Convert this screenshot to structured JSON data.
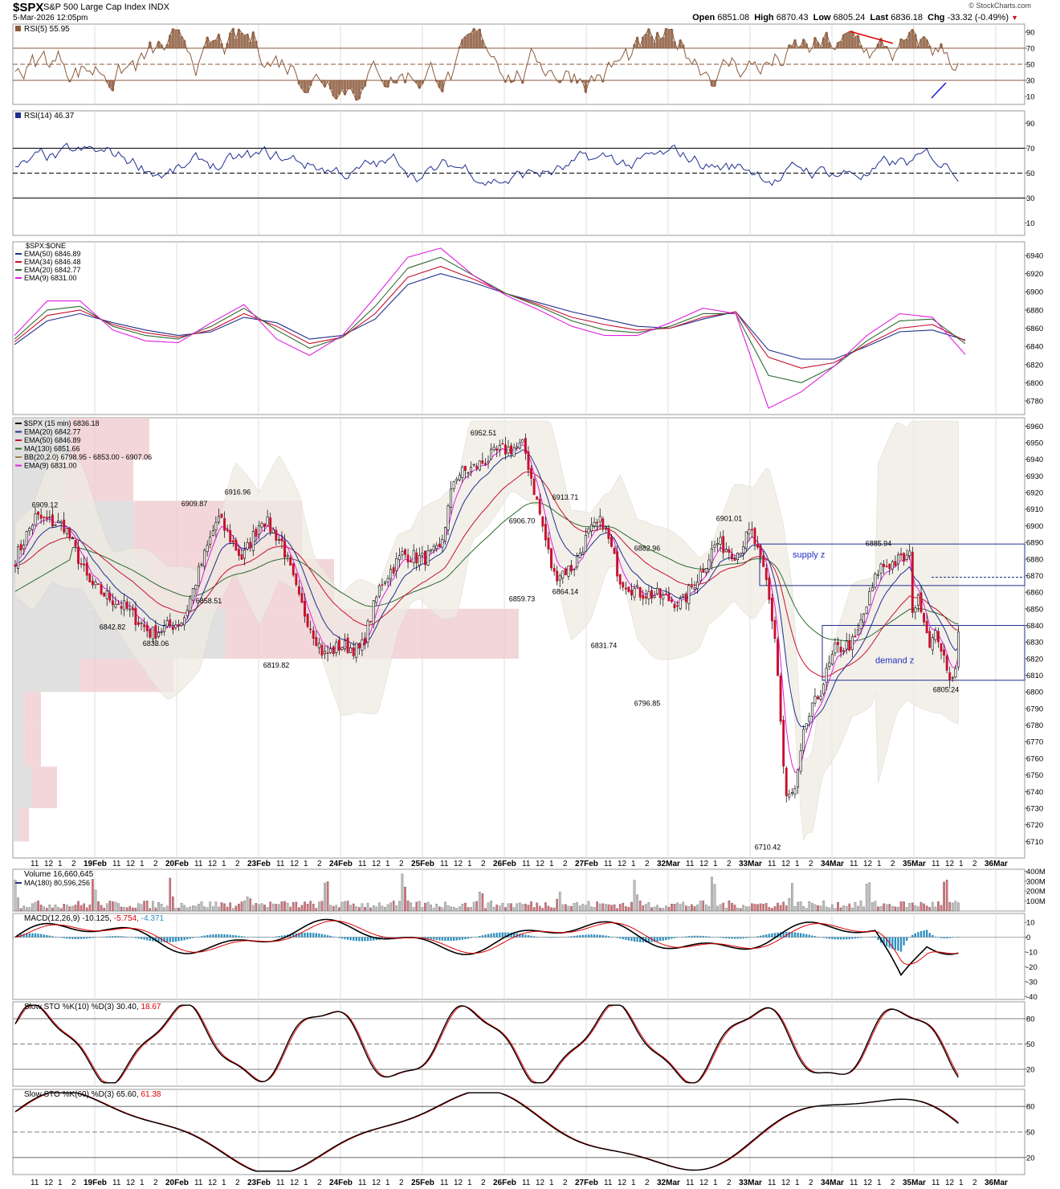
{
  "header": {
    "symbol": "$SPX",
    "name": "S&P 500 Large Cap Index",
    "exchange": "INDX",
    "datetime": "5-Mar-2026 12:05pm",
    "logo": "© StockCharts.com",
    "open_label": "Open",
    "open": "6851.08",
    "high_label": "High",
    "high": "6870.43",
    "low_label": "Low",
    "low": "6805.24",
    "last_label": "Last",
    "last": "6836.18",
    "chg_label": "Chg",
    "chg": "-33.32 (-0.49%)"
  },
  "colors": {
    "up": "#ffffff",
    "down": "#c8102e",
    "candle_edge": "#000000",
    "rsi5": "#8b5a3c",
    "rsi14": "#1f2f8f",
    "ema50": "#1f2f8f",
    "ema34": "#c8102e",
    "ema20": "#2e6b2e",
    "ema9": "#e020e0",
    "sma130": "#2e6b2e",
    "bb_fill": "#efebe3",
    "macd_hist": "#2b8fbf",
    "vol_up": "#bfbfbf",
    "vol_down": "#d9707a"
  },
  "chart_data": [
    {
      "type": "line",
      "panel": "rsi5",
      "legend": [
        "RSI(5) 55.95"
      ],
      "ylim": [
        0,
        100
      ],
      "yticks": [
        "90",
        "70",
        "50",
        "30",
        "10"
      ],
      "levels": [
        70,
        50,
        30
      ],
      "annotations": [
        {
          "kind": "trendline",
          "color": "#e00000",
          "from": [
            "34Mar 11",
            91
          ],
          "to": [
            "34Mar 2",
            76
          ]
        },
        {
          "kind": "trendline",
          "color": "#2020d0",
          "from": [
            "35Mar 11",
            8
          ],
          "to": [
            "35Mar 12",
            27
          ]
        }
      ]
    },
    {
      "type": "line",
      "panel": "rsi14",
      "legend": [
        "RSI(14) 46.37"
      ],
      "ylim": [
        0,
        100
      ],
      "yticks": [
        "90",
        "70",
        "50",
        "30",
        "10"
      ],
      "levels": [
        70,
        50,
        30
      ]
    },
    {
      "type": "line",
      "panel": "ema_ratio",
      "legend": [
        "$SPX:$ONE",
        "EMA(50) 6846.89",
        "EMA(34) 6846.48",
        "EMA(20) 6842.77",
        "EMA(9) 6831.00"
      ],
      "ylim": [
        6765,
        6955
      ],
      "yticks": [
        "6940",
        "6920",
        "6900",
        "6880",
        "6860",
        "6840",
        "6820",
        "6800",
        "6780"
      ],
      "series": [
        {
          "name": "EMA(50) 6846.89",
          "values": [
            6842,
            6868,
            6876,
            6866,
            6858,
            6852,
            6856,
            6872,
            6866,
            6848,
            6852,
            6870,
            6908,
            6920,
            6910,
            6898,
            6888,
            6878,
            6870,
            6862,
            6860,
            6870,
            6878,
            6836,
            6826,
            6826,
            6840,
            6856,
            6858,
            6847
          ]
        },
        {
          "name": "EMA(34) 6846.48",
          "values": [
            6845,
            6874,
            6880,
            6864,
            6855,
            6850,
            6858,
            6876,
            6862,
            6843,
            6850,
            6876,
            6916,
            6928,
            6914,
            6898,
            6886,
            6872,
            6864,
            6858,
            6860,
            6872,
            6878,
            6828,
            6816,
            6822,
            6842,
            6860,
            6864,
            6846
          ]
        },
        {
          "name": "EMA(20) 6842.77",
          "values": [
            6848,
            6880,
            6884,
            6862,
            6852,
            6848,
            6862,
            6882,
            6858,
            6838,
            6850,
            6884,
            6926,
            6938,
            6918,
            6898,
            6884,
            6868,
            6858,
            6855,
            6862,
            6876,
            6876,
            6808,
            6800,
            6818,
            6846,
            6868,
            6870,
            6843
          ]
        },
        {
          "name": "EMA(9) 6831.00",
          "values": [
            6852,
            6890,
            6890,
            6858,
            6846,
            6844,
            6866,
            6886,
            6848,
            6830,
            6852,
            6894,
            6938,
            6948,
            6918,
            6896,
            6880,
            6862,
            6852,
            6852,
            6866,
            6882,
            6876,
            6772,
            6790,
            6818,
            6852,
            6876,
            6872,
            6831
          ]
        }
      ]
    },
    {
      "type": "candlestick",
      "panel": "price",
      "legend": [
        "$SPX (15 min) 6836.18",
        "EMA(20) 6842.77",
        "EMA(50) 6846.89",
        "MA(130) 6851.66",
        "BB(20,2.0) 6798.95 - 6853.00 - 6907.06",
        "EMA(9) 6831.00"
      ],
      "ylim": [
        6700,
        6965
      ],
      "yticks": [
        "6960",
        "6950",
        "6940",
        "6930",
        "6920",
        "6910",
        "6900",
        "6890",
        "6880",
        "6870",
        "6860",
        "6850",
        "6840",
        "6830",
        "6820",
        "6810",
        "6800",
        "6790",
        "6780",
        "6770",
        "6760",
        "6750",
        "6740",
        "6730",
        "6720",
        "6710"
      ],
      "price_labels": [
        {
          "x": "18Feb 12",
          "y": 6909.12,
          "text": "6909.12"
        },
        {
          "x": "19Feb 11",
          "y": 6842.82,
          "text": "6842.82"
        },
        {
          "x": "19Feb 2",
          "y": 6833.06,
          "text": "6833.06"
        },
        {
          "x": "20Feb 11",
          "y": 6909.87,
          "text": "6909.87"
        },
        {
          "x": "20Feb 12",
          "y": 6858.51,
          "text": "6858.51"
        },
        {
          "x": "20Feb 2",
          "y": 6916.96,
          "text": "6916.96"
        },
        {
          "x": "23Feb 11",
          "y": 6819.82,
          "text": "6819.82"
        },
        {
          "x": "25Feb 2",
          "y": 6952.51,
          "text": "6952.51"
        },
        {
          "x": "26Feb 11",
          "y": 6906.7,
          "text": "6906.70"
        },
        {
          "x": "26Feb 11",
          "y": 6859.73,
          "text": "6859.73"
        },
        {
          "x": "26Feb 2",
          "y": 6864.14,
          "text": "6864.14"
        },
        {
          "x": "26Feb 2",
          "y": 6913.71,
          "text": "6913.71"
        },
        {
          "x": "27Feb 11",
          "y": 6831.74,
          "text": "6831.74"
        },
        {
          "x": "27Feb 2",
          "y": 6882.96,
          "text": "6882.96"
        },
        {
          "x": "27Feb 2",
          "y": 6796.85,
          "text": "6796.85"
        },
        {
          "x": "32Mar 2",
          "y": 6901.01,
          "text": "6901.01"
        },
        {
          "x": "33Mar 11",
          "y": 6710.42,
          "text": "6710.42"
        },
        {
          "x": "34Mar 1",
          "y": 6885.94,
          "text": "6885.94"
        },
        {
          "x": "35Mar 12",
          "y": 6805.24,
          "text": "6805.24"
        }
      ],
      "zones": [
        {
          "label": "supply z",
          "y0": 6864,
          "y1": 6889
        },
        {
          "label": "demand z",
          "y0": 6807,
          "y1": 6840
        }
      ],
      "dotted_level": 6869
    },
    {
      "type": "bar",
      "panel": "volume",
      "legend": [
        "Volume 16,660,645",
        "MA(180) 80,596,256"
      ],
      "ylim": [
        0,
        420
      ],
      "yticks": [
        "400M",
        "300M",
        "200M",
        "100M"
      ]
    },
    {
      "type": "line",
      "panel": "macd",
      "legend_name": "MACD(12,26,9)",
      "legend_values": [
        "-10.125,",
        "-5.754,",
        "-4.371"
      ],
      "ylim": [
        -42,
        16
      ],
      "yticks": [
        "10",
        "0",
        "-10",
        "-20",
        "-30",
        "-40"
      ]
    },
    {
      "type": "line",
      "panel": "sto10",
      "legend_name": "Slow STO %K(10) %D(3)",
      "legend_values": [
        "30.40,",
        "18.67"
      ],
      "ylim": [
        0,
        100
      ],
      "yticks": [
        "80",
        "50",
        "20"
      ],
      "levels": [
        80,
        50,
        20
      ]
    },
    {
      "type": "line",
      "panel": "sto60",
      "legend_name": "Slow STO %K(60) %D(3)",
      "legend_values": [
        "65.60,",
        "61.38"
      ],
      "ylim": [
        0,
        100
      ],
      "yticks": [
        "80",
        "50",
        "20"
      ],
      "levels": [
        80,
        50,
        20
      ]
    }
  ],
  "x_axis": {
    "days": [
      {
        "label": "",
        "hours": [
          "11",
          "12",
          "1",
          "2"
        ]
      },
      {
        "label": "19Feb",
        "hours": [
          "11",
          "12",
          "1",
          "2"
        ]
      },
      {
        "label": "20Feb",
        "hours": [
          "11",
          "12",
          "1",
          "2"
        ]
      },
      {
        "label": "23Feb",
        "hours": [
          "11",
          "12",
          "1",
          "2"
        ]
      },
      {
        "label": "24Feb",
        "hours": [
          "11",
          "12",
          "1",
          "2"
        ]
      },
      {
        "label": "25Feb",
        "hours": [
          "11",
          "12",
          "1",
          "2"
        ]
      },
      {
        "label": "26Feb",
        "hours": [
          "11",
          "12",
          "1",
          "2"
        ]
      },
      {
        "label": "27Feb",
        "hours": [
          "11",
          "12",
          "1",
          "2"
        ]
      },
      {
        "label": "32Mar",
        "hours": [
          "11",
          "12",
          "1",
          "2"
        ]
      },
      {
        "label": "33Mar",
        "hours": [
          "11",
          "12",
          "1",
          "2"
        ]
      },
      {
        "label": "34Mar",
        "hours": [
          "11",
          "12",
          "1",
          "2"
        ]
      },
      {
        "label": "35Mar",
        "hours": [
          "11",
          "12",
          "1",
          "2"
        ]
      },
      {
        "label": "36Mar",
        "hours": []
      }
    ]
  }
}
